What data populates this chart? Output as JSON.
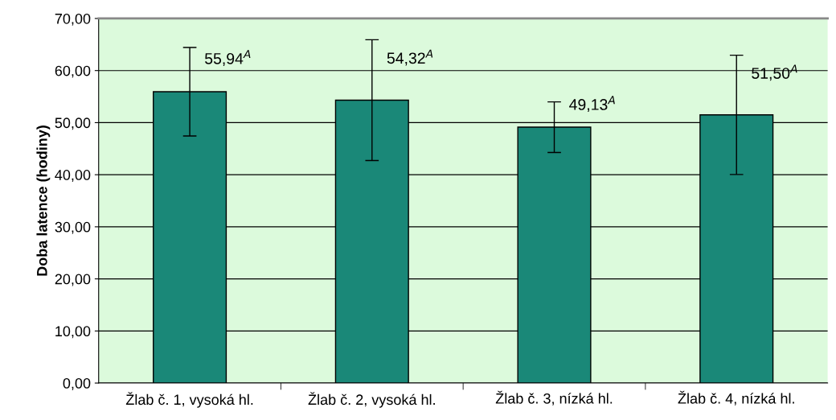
{
  "chart_data": {
    "type": "bar",
    "ylabel": "Doba latence (hodiny)",
    "categories": [
      "Žlab č. 1, vysoká hl.",
      "Žlab č. 2, vysoká hl.",
      "Žlab č. 3, nízká hl.",
      "Žlab č. 4, nízká hl."
    ],
    "values": [
      55.94,
      54.32,
      49.13,
      51.5
    ],
    "errors": [
      8.5,
      11.6,
      4.85,
      11.45
    ],
    "value_labels": [
      "55,94$^{A}$",
      "54,32$^{A}$",
      "49,13$^{A}$",
      "51,50$^{A}$"
    ],
    "color": "#1a8878",
    "ylim": [
      0,
      70
    ],
    "yticks": [
      {
        "value": 0,
        "label": "0,00"
      },
      {
        "value": 10,
        "label": "10,00"
      },
      {
        "value": 20,
        "label": "20,00"
      },
      {
        "value": 30,
        "label": "30,00"
      },
      {
        "value": 40,
        "label": "40,00"
      },
      {
        "value": 50,
        "label": "50,00"
      },
      {
        "value": 60,
        "label": "60,00"
      },
      {
        "value": 70,
        "label": "70,00"
      }
    ],
    "grid": "y",
    "legend": false
  }
}
